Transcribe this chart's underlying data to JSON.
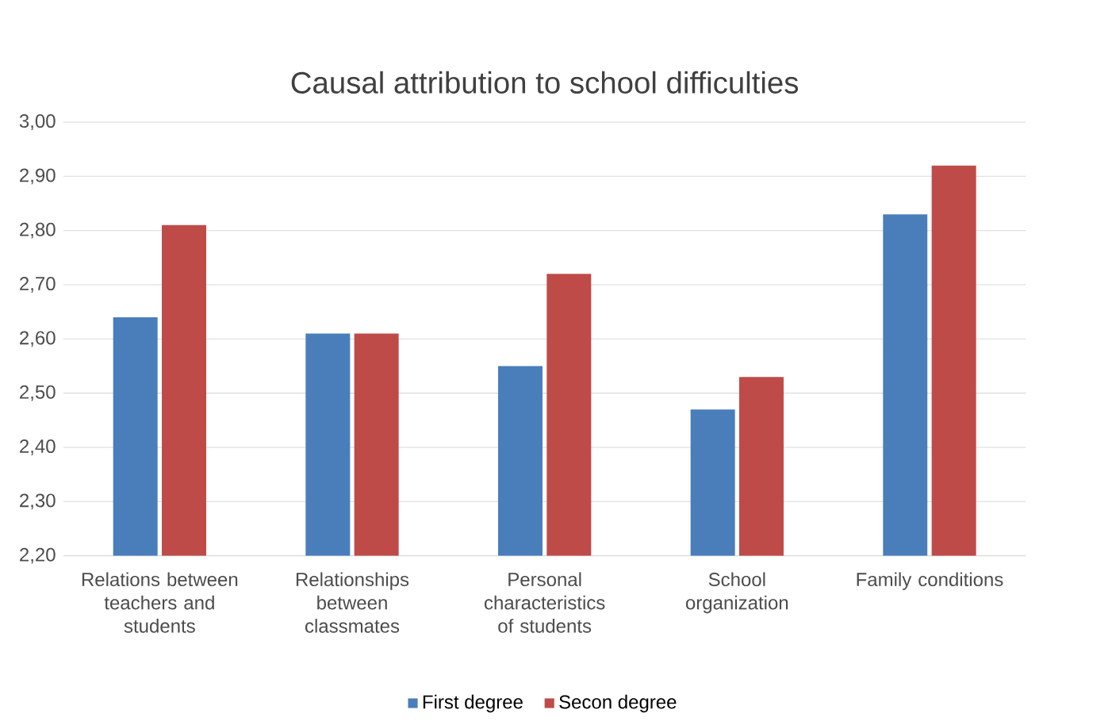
{
  "chart_data": {
    "type": "bar",
    "title": "Causal attribution to school difficulties",
    "categories": [
      "Relations between teachers and students",
      "Relationships between classmates",
      "Personal characteristics of students",
      "School organization",
      "Family conditions"
    ],
    "series": [
      {
        "name": "First degree",
        "color": "#4a7ebb",
        "values": [
          2.64,
          2.61,
          2.55,
          2.47,
          2.83
        ]
      },
      {
        "name": "Secon degree",
        "color": "#be4b48",
        "values": [
          2.81,
          2.61,
          2.72,
          2.53,
          2.92
        ]
      }
    ],
    "ylim": [
      2.2,
      3.0
    ],
    "yticks": [
      {
        "value": 2.2,
        "label": "2,20"
      },
      {
        "value": 2.3,
        "label": "2,30"
      },
      {
        "value": 2.4,
        "label": "2,40"
      },
      {
        "value": 2.5,
        "label": "2,50"
      },
      {
        "value": 2.6,
        "label": "2,60"
      },
      {
        "value": 2.7,
        "label": "2,70"
      },
      {
        "value": 2.8,
        "label": "2,80"
      },
      {
        "value": 2.9,
        "label": "2,90"
      },
      {
        "value": 3.0,
        "label": "3,00"
      }
    ],
    "grid": "y",
    "legend": "bottom"
  }
}
